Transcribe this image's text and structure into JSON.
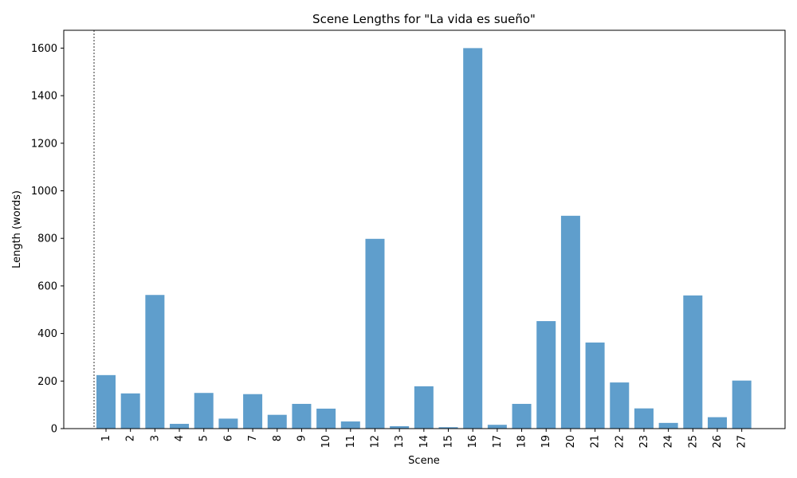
{
  "chart_data": {
    "type": "bar",
    "title": "Scene Lengths for \"La vida es sueño\"",
    "xlabel": "Scene",
    "ylabel": "Length (words)",
    "categories": [
      "1",
      "2",
      "3",
      "4",
      "5",
      "6",
      "7",
      "8",
      "9",
      "10",
      "11",
      "12",
      "13",
      "14",
      "15",
      "16",
      "17",
      "18",
      "19",
      "20",
      "21",
      "22",
      "23",
      "24",
      "25",
      "26",
      "27"
    ],
    "values": [
      225,
      148,
      562,
      20,
      150,
      42,
      145,
      58,
      104,
      84,
      30,
      798,
      10,
      178,
      6,
      1600,
      16,
      104,
      452,
      895,
      362,
      194,
      85,
      24,
      560,
      48,
      202
    ],
    "yticks": [
      0,
      200,
      400,
      600,
      800,
      1000,
      1200,
      1400,
      1600
    ],
    "ylim": [
      0,
      1675
    ],
    "bar_color": "#5f9ecc",
    "grid": false,
    "legend": "none",
    "reference_line": "dashed vertical line at left edge of plot"
  }
}
